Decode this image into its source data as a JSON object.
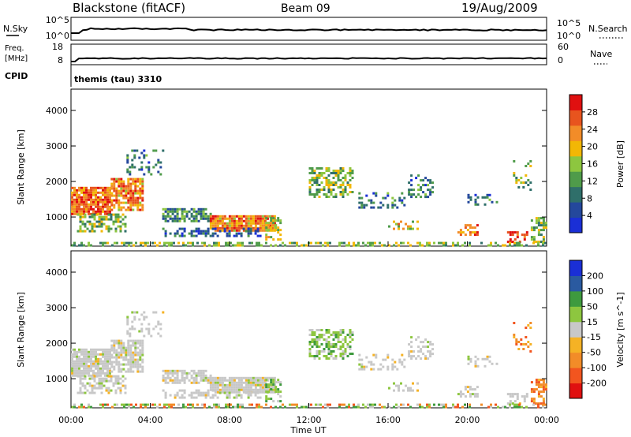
{
  "header": {
    "title": "Blackstone (fitACF)",
    "beam": "Beam 09",
    "date": "19/Aug/2009"
  },
  "panels": {
    "nsky": {
      "label": "N.Sky",
      "right_label": "N.Search",
      "ticks_left": [
        "10^5",
        "10^0"
      ],
      "ticks_right": [
        "10^5",
        "10^0"
      ]
    },
    "freq": {
      "label": "Freq.",
      "unit": "[MHz]",
      "ticks_left": [
        "18",
        "8"
      ],
      "right_label": "Nave",
      "ticks_right": [
        "60",
        "0"
      ]
    },
    "cpid": {
      "label": "CPID",
      "value": "themis (tau) 3310"
    }
  },
  "colors": {
    "power_scale": [
      "#1a2fd6",
      "#24489c",
      "#2f6f6a",
      "#4f9b4a",
      "#8dc63f",
      "#f2b705",
      "#f28c28",
      "#e8541e",
      "#e01010"
    ],
    "velocity_scale": [
      "#e01010",
      "#f2551f",
      "#f28c28",
      "#f5b225",
      "#c8c8c8",
      "#8dc63f",
      "#3e9a3e",
      "#2a5aa0",
      "#1a2fd6"
    ]
  },
  "chart_data": [
    {
      "type": "heatmap",
      "title": "Power",
      "ylabel": "Slant Range [km]",
      "ylim": [
        180,
        4600
      ],
      "yticks": [
        "1000",
        "2000",
        "3000",
        "4000"
      ],
      "xlabel": "Time UT",
      "xticks": [
        "00:00",
        "04:00",
        "08:00",
        "12:00",
        "16:00",
        "20:00",
        "00:00"
      ],
      "colorbar": {
        "label": "Power [dB]",
        "ticks": [
          "4",
          "8",
          "12",
          "16",
          "20",
          "24",
          "28"
        ],
        "range": [
          0,
          30
        ]
      },
      "grid": false
    },
    {
      "type": "heatmap",
      "title": "Velocity",
      "ylabel": "Slant Range [km]",
      "ylim": [
        180,
        4600
      ],
      "yticks": [
        "1000",
        "2000",
        "3000",
        "4000"
      ],
      "xlabel": "Time UT",
      "xticks": [
        "00:00",
        "04:00",
        "08:00",
        "12:00",
        "16:00",
        "20:00",
        "00:00"
      ],
      "colorbar": {
        "label": "Velocity [m s^-1]",
        "ticks": [
          "200",
          "100",
          "50",
          "15",
          "-15",
          "-50",
          "-100",
          "-200"
        ]
      },
      "grid": false
    }
  ]
}
